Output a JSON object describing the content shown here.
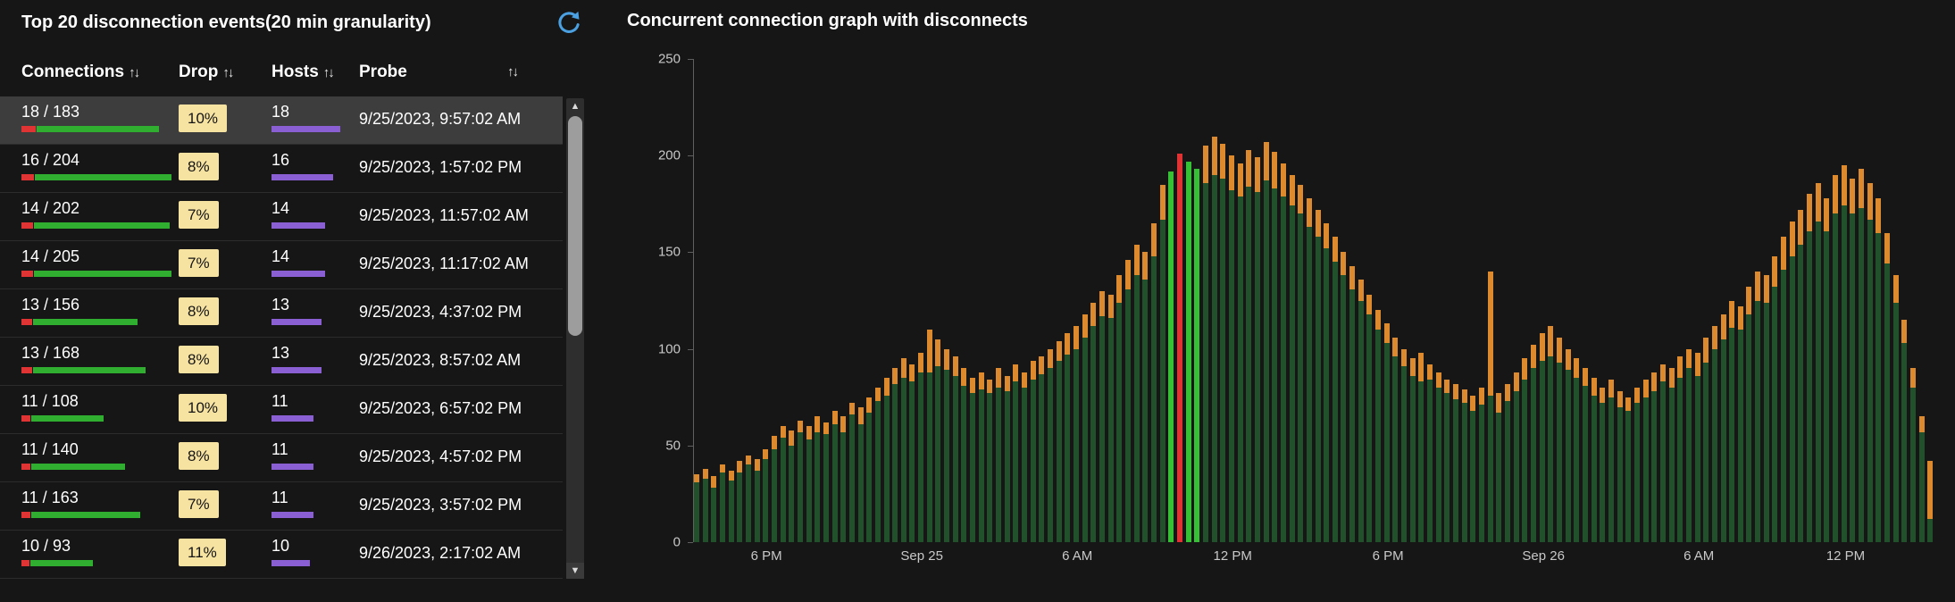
{
  "left_panel": {
    "title": "Top 20 disconnection events(20 min granularity)",
    "columns": [
      {
        "label": "Connections",
        "sort": "↑↓"
      },
      {
        "label": "Drop",
        "sort": "↑↓"
      },
      {
        "label": "Hosts",
        "sort": "↑↓"
      },
      {
        "label": "Probe",
        "sort": "↑↓"
      }
    ],
    "rows": [
      {
        "connections": "18 / 183",
        "drops": 18,
        "total": 183,
        "drop": "10%",
        "hosts": 18,
        "probe": "9/25/2023, 9:57:02 AM",
        "selected": true
      },
      {
        "connections": "16 / 204",
        "drops": 16,
        "total": 204,
        "drop": "8%",
        "hosts": 16,
        "probe": "9/25/2023, 1:57:02 PM",
        "selected": false
      },
      {
        "connections": "14 / 202",
        "drops": 14,
        "total": 202,
        "drop": "7%",
        "hosts": 14,
        "probe": "9/25/2023, 11:57:02 AM",
        "selected": false
      },
      {
        "connections": "14 / 205",
        "drops": 14,
        "total": 205,
        "drop": "7%",
        "hosts": 14,
        "probe": "9/25/2023, 11:17:02 AM",
        "selected": false
      },
      {
        "connections": "13 / 156",
        "drops": 13,
        "total": 156,
        "drop": "8%",
        "hosts": 13,
        "probe": "9/25/2023, 4:37:02 PM",
        "selected": false
      },
      {
        "connections": "13 / 168",
        "drops": 13,
        "total": 168,
        "drop": "8%",
        "hosts": 13,
        "probe": "9/25/2023, 8:57:02 AM",
        "selected": false
      },
      {
        "connections": "11 / 108",
        "drops": 11,
        "total": 108,
        "drop": "10%",
        "hosts": 11,
        "probe": "9/25/2023, 6:57:02 PM",
        "selected": false
      },
      {
        "connections": "11 / 140",
        "drops": 11,
        "total": 140,
        "drop": "8%",
        "hosts": 11,
        "probe": "9/25/2023, 4:57:02 PM",
        "selected": false
      },
      {
        "connections": "11 / 163",
        "drops": 11,
        "total": 163,
        "drop": "7%",
        "hosts": 11,
        "probe": "9/25/2023, 3:57:02 PM",
        "selected": false
      },
      {
        "connections": "10 / 93",
        "drops": 10,
        "total": 93,
        "drop": "11%",
        "hosts": 10,
        "probe": "9/26/2023, 2:17:02 AM",
        "selected": false
      }
    ]
  },
  "right_panel": {
    "title": "Concurrent connection graph with disconnects"
  },
  "colors": {
    "accent_blue": "#4ba0e1",
    "bar_red": "#e03434",
    "bar_green": "#2fae2f",
    "host_purple": "#8a5fd3",
    "badge_bg": "#f7e3a1",
    "chart_green": "#20512a",
    "chart_orange": "#dd8a2e",
    "highlight_green": "#35c035",
    "highlight_red": "#e03232"
  },
  "chart_data": {
    "type": "bar",
    "stacked": true,
    "title": "Concurrent connection graph with disconnects",
    "xlabel": "",
    "ylabel": "",
    "ylim": [
      0,
      250
    ],
    "yticks": [
      0,
      50,
      100,
      150,
      200,
      250
    ],
    "granularity_minutes": 20,
    "legend": "none",
    "grid": false,
    "series": [
      {
        "name": "concurrent connections",
        "color": "#20512a"
      },
      {
        "name": "disconnects",
        "color": "#dd8a2e"
      }
    ],
    "highlight_colors": {
      "bright": "#35c035",
      "red": "#e03232"
    },
    "xticks": [
      {
        "index": 8,
        "label": "6 PM"
      },
      {
        "index": 26,
        "label": "Sep 25"
      },
      {
        "index": 44,
        "label": "6 AM"
      },
      {
        "index": 62,
        "label": "12 PM"
      },
      {
        "index": 80,
        "label": "6 PM"
      },
      {
        "index": 98,
        "label": "Sep 26"
      },
      {
        "index": 116,
        "label": "6 AM"
      },
      {
        "index": 133,
        "label": "12 PM"
      }
    ],
    "totals": [
      35,
      38,
      34,
      40,
      37,
      42,
      45,
      43,
      48,
      55,
      60,
      58,
      63,
      60,
      65,
      62,
      68,
      65,
      72,
      70,
      75,
      80,
      85,
      90,
      95,
      92,
      98,
      110,
      105,
      100,
      96,
      90,
      85,
      88,
      84,
      90,
      86,
      92,
      88,
      94,
      96,
      100,
      104,
      108,
      112,
      118,
      124,
      130,
      128,
      138,
      146,
      154,
      150,
      165,
      185,
      192,
      201,
      197,
      193,
      205,
      210,
      206,
      200,
      196,
      203,
      199,
      207,
      202,
      196,
      190,
      185,
      178,
      172,
      165,
      158,
      150,
      143,
      136,
      128,
      120,
      113,
      106,
      100,
      95,
      98,
      92,
      88,
      84,
      82,
      79,
      76,
      80,
      140,
      77,
      82,
      88,
      95,
      102,
      108,
      112,
      106,
      100,
      95,
      90,
      85,
      80,
      84,
      78,
      75,
      80,
      84,
      88,
      92,
      90,
      96,
      100,
      98,
      106,
      112,
      118,
      125,
      122,
      132,
      140,
      138,
      148,
      158,
      166,
      172,
      180,
      186,
      178,
      190,
      195,
      188,
      193,
      186,
      178,
      160,
      138,
      115,
      90,
      65,
      42
    ],
    "disconnects": [
      4,
      5,
      6,
      4,
      5,
      6,
      5,
      6,
      5,
      7,
      6,
      8,
      6,
      7,
      8,
      6,
      7,
      8,
      6,
      9,
      8,
      7,
      9,
      8,
      10,
      9,
      10,
      22,
      14,
      11,
      10,
      9,
      8,
      9,
      7,
      10,
      8,
      9,
      8,
      10,
      9,
      10,
      10,
      11,
      12,
      12,
      12,
      13,
      12,
      14,
      15,
      16,
      14,
      17,
      18,
      0,
      0,
      0,
      0,
      19,
      20,
      18,
      18,
      17,
      19,
      18,
      20,
      19,
      17,
      16,
      15,
      15,
      14,
      13,
      13,
      12,
      12,
      11,
      10,
      10,
      10,
      10,
      9,
      9,
      15,
      8,
      8,
      7,
      8,
      7,
      8,
      9,
      64,
      10,
      9,
      10,
      11,
      12,
      14,
      16,
      13,
      11,
      10,
      9,
      9,
      8,
      9,
      8,
      7,
      8,
      9,
      10,
      9,
      10,
      11,
      10,
      12,
      13,
      12,
      13,
      14,
      12,
      14,
      15,
      14,
      16,
      17,
      18,
      18,
      19,
      20,
      17,
      20,
      21,
      18,
      20,
      19,
      18,
      16,
      14,
      12,
      10,
      8,
      30
    ],
    "special_bars": [
      {
        "index": 55,
        "type": "bright"
      },
      {
        "index": 56,
        "type": "red"
      },
      {
        "index": 57,
        "type": "bright"
      },
      {
        "index": 58,
        "type": "bright"
      }
    ]
  }
}
